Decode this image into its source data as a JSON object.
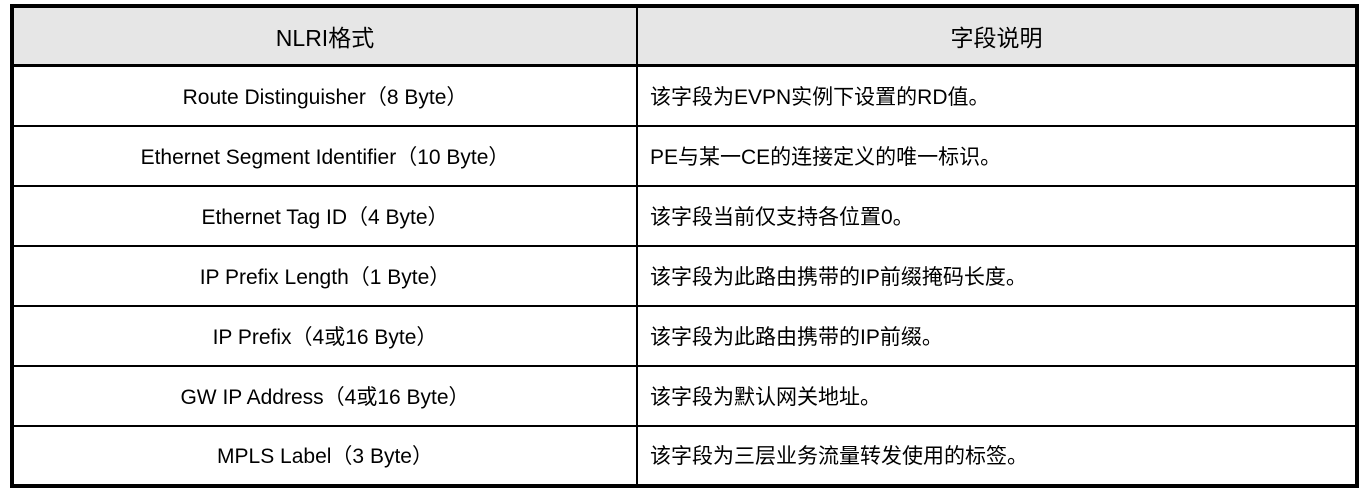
{
  "table": {
    "headers": [
      {
        "label": "NLRI格式"
      },
      {
        "label": "字段说明"
      }
    ],
    "rows": [
      {
        "field": "Route Distinguisher（8 Byte）",
        "desc": "该字段为EVPN实例下设置的RD值。"
      },
      {
        "field": "Ethernet Segment Identifier（10 Byte）",
        "desc": "PE与某一CE的连接定义的唯一标识。"
      },
      {
        "field": "Ethernet Tag ID（4 Byte）",
        "desc": "该字段当前仅支持各位置0。"
      },
      {
        "field": "IP Prefix Length（1 Byte）",
        "desc": "该字段为此路由携带的IP前缀掩码长度。"
      },
      {
        "field": "IP Prefix（4或16 Byte）",
        "desc": "该字段为此路由携带的IP前缀。"
      },
      {
        "field": "GW IP Address（4或16 Byte）",
        "desc": "该字段为默认网关地址。"
      },
      {
        "field": "MPLS Label（3 Byte）",
        "desc": "该字段为三层业务流量转发使用的标签。"
      }
    ],
    "colors": {
      "header_bg": "#e6e6e6",
      "border": "#000000",
      "text": "#000000",
      "background": "#ffffff"
    }
  }
}
